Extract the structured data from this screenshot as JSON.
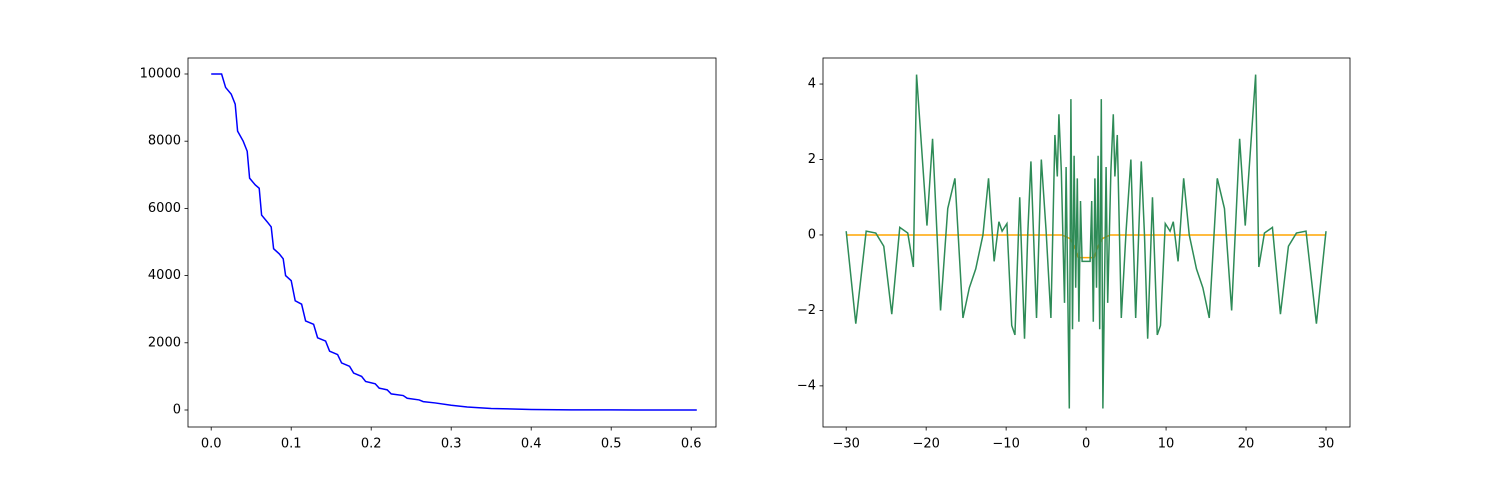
{
  "chart_data": [
    {
      "type": "line",
      "color": "#0000ff",
      "x": [
        0,
        0.013,
        0.018,
        0.025,
        0.03,
        0.033,
        0.04,
        0.045,
        0.048,
        0.055,
        0.06,
        0.063,
        0.07,
        0.075,
        0.078,
        0.085,
        0.09,
        0.093,
        0.1,
        0.105,
        0.113,
        0.118,
        0.128,
        0.133,
        0.143,
        0.148,
        0.158,
        0.163,
        0.173,
        0.178,
        0.188,
        0.193,
        0.205,
        0.21,
        0.22,
        0.225,
        0.24,
        0.245,
        0.26,
        0.265,
        0.28,
        0.3,
        0.32,
        0.35,
        0.4,
        0.45,
        0.5,
        0.55,
        0.607
      ],
      "values": [
        10000,
        10000,
        9600,
        9400,
        9100,
        8300,
        8000,
        7700,
        6900,
        6700,
        6600,
        5800,
        5600,
        5450,
        4800,
        4650,
        4500,
        4000,
        3850,
        3250,
        3150,
        2650,
        2550,
        2150,
        2050,
        1750,
        1650,
        1400,
        1300,
        1100,
        1000,
        850,
        780,
        650,
        600,
        480,
        430,
        350,
        300,
        250,
        210,
        140,
        90,
        45,
        15,
        5,
        2,
        1,
        0
      ],
      "xlim": [
        -0.029,
        0.631
      ],
      "xticks": [
        {
          "value": 0,
          "label": "0.0"
        },
        0.1,
        0.2,
        0.3,
        0.4,
        0.5,
        0.6
      ],
      "ylim": [
        -506,
        10476
      ],
      "yticks": [
        0,
        2000,
        4000,
        6000,
        8000,
        10000
      ]
    },
    {
      "type": "line",
      "series": [
        {
          "color": "#ffa500",
          "x": [
            -30,
            -3,
            -2,
            -1.5,
            -1,
            1,
            1.5,
            2,
            3,
            30
          ],
          "values": [
            0,
            0,
            -0.1,
            -0.3,
            -0.6,
            -0.6,
            -0.3,
            -0.1,
            0,
            0
          ]
        },
        {
          "color": "#2e8b57",
          "x": [
            -30,
            -28.8,
            -27.5,
            -26.3,
            -25.3,
            -24.3,
            -23.3,
            -22.3,
            -21.6,
            -21.2,
            -19.9,
            -19.2,
            -18.2,
            -17.3,
            -16.4,
            -15.4,
            -14.6,
            -13.8,
            -12.9,
            -12.2,
            -11.5,
            -10.9,
            -10.5,
            -9.9,
            -9.3,
            -8.9,
            -8.3,
            -7.7,
            -7.3,
            -6.9,
            -6.2,
            -5.6,
            -5.0,
            -4.4,
            -3.9,
            -3.6,
            -3.4,
            -3.1,
            -2.7,
            -2.5,
            -2.1,
            -1.9,
            -1.7,
            -1.5,
            -1.3,
            -1.1,
            -0.9,
            -0.7,
            -0.5,
            0.5,
            0.7,
            0.9,
            1.1,
            1.3,
            1.5,
            1.7,
            1.9,
            2.1,
            2.5,
            2.7,
            3.1,
            3.4,
            3.6,
            3.9,
            4.4,
            5.0,
            5.6,
            6.2,
            6.9,
            7.3,
            7.7,
            8.3,
            8.9,
            9.3,
            9.9,
            10.5,
            10.9,
            11.5,
            12.2,
            12.9,
            13.8,
            14.6,
            15.4,
            16.4,
            17.3,
            18.2,
            19.2,
            19.9,
            21.2,
            21.6,
            22.3,
            23.3,
            24.3,
            25.3,
            26.3,
            27.5,
            28.8,
            30
          ],
          "values": [
            0.1,
            -2.35,
            0.1,
            0.05,
            -0.3,
            -2.1,
            0.2,
            0.05,
            -0.85,
            4.25,
            0.25,
            2.55,
            -2.0,
            0.7,
            1.5,
            -2.2,
            -1.4,
            -0.9,
            0.0,
            1.5,
            -0.7,
            0.35,
            0.1,
            0.3,
            -2.4,
            -2.65,
            1.0,
            -2.75,
            0.0,
            1.95,
            -2.2,
            2.0,
            0.1,
            -2.2,
            2.65,
            1.55,
            3.2,
            1.7,
            -1.8,
            1.8,
            -4.6,
            3.6,
            -2.5,
            2.1,
            -1.4,
            1.5,
            -2.3,
            0.9,
            -0.7,
            -0.7,
            0.9,
            -2.3,
            1.5,
            -1.4,
            2.1,
            -2.5,
            3.6,
            -4.6,
            1.8,
            -1.8,
            1.7,
            3.2,
            1.55,
            2.65,
            -2.2,
            0.1,
            2.0,
            -2.2,
            1.95,
            0.0,
            -2.75,
            1.0,
            -2.65,
            -2.4,
            0.3,
            0.1,
            0.35,
            -0.7,
            1.5,
            0.0,
            -0.9,
            -1.4,
            -2.2,
            1.5,
            0.7,
            -2.0,
            2.55,
            0.25,
            4.25,
            -0.85,
            0.05,
            0.2,
            -2.1,
            -0.3,
            0.05,
            0.1,
            -2.35,
            0.1
          ]
        }
      ],
      "xlim": [
        -32.9,
        33
      ],
      "xticks": [
        {
          "value": -30,
          "label": "−30"
        },
        {
          "value": -20,
          "label": "−20"
        },
        {
          "value": -10,
          "label": "−10"
        },
        0,
        10,
        20,
        30
      ],
      "ylim": [
        -5.09,
        4.69
      ],
      "yticks": [
        {
          "value": -4,
          "label": "−4"
        },
        {
          "value": -2,
          "label": "−2"
        },
        0,
        2,
        4
      ]
    }
  ]
}
